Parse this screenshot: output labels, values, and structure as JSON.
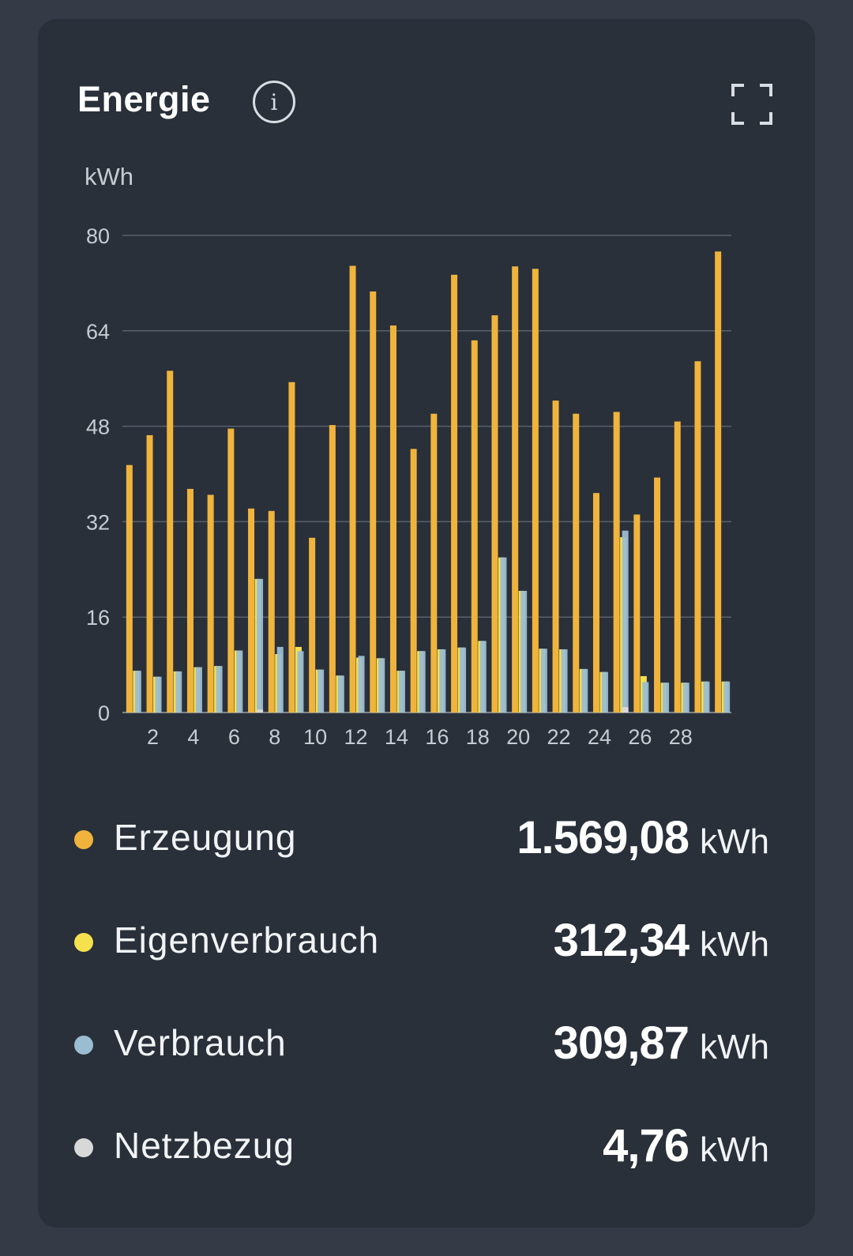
{
  "card": {
    "title": "Energie",
    "info_icon": "info-icon",
    "fullscreen_icon": "fullscreen-icon"
  },
  "chart_data": {
    "type": "bar",
    "ylabel": "kWh",
    "ylim": [
      0,
      80
    ],
    "yticks": [
      0,
      16,
      32,
      48,
      64,
      80
    ],
    "x": [
      1,
      2,
      3,
      4,
      5,
      6,
      7,
      8,
      9,
      10,
      11,
      12,
      13,
      14,
      15,
      16,
      17,
      18,
      19,
      20,
      21,
      22,
      23,
      24,
      25,
      26,
      27,
      28,
      29,
      30
    ],
    "xtick_labels": [
      "2",
      "4",
      "6",
      "8",
      "10",
      "12",
      "14",
      "16",
      "18",
      "20",
      "22",
      "24",
      "26",
      "28"
    ],
    "grid": true,
    "series": [
      {
        "name": "Erzeugung",
        "color": "#f0b43c",
        "values": [
          41.5,
          46.5,
          57.3,
          37.5,
          36.5,
          47.6,
          34.2,
          33.8,
          55.4,
          29.3,
          48.2,
          74.9,
          70.6,
          64.9,
          44.2,
          50.1,
          73.4,
          62.4,
          66.6,
          74.8,
          74.4,
          52.3,
          50.1,
          36.8,
          50.4,
          33.2,
          39.4,
          48.8,
          58.9,
          77.3
        ]
      },
      {
        "name": "Eigenverbrauch",
        "color": "#f5e04e",
        "values": [
          7.0,
          6.0,
          6.9,
          7.6,
          7.8,
          10.4,
          22.4,
          9.8,
          11.0,
          7.2,
          6.2,
          9.2,
          9.1,
          7.0,
          10.3,
          10.6,
          10.9,
          12.0,
          26.0,
          20.4,
          10.7,
          10.6,
          7.3,
          6.8,
          29.4,
          6.1,
          5.0,
          5.0,
          5.2,
          5.2
        ]
      },
      {
        "name": "Verbrauch",
        "color": "#9bbdd2",
        "values": [
          7.0,
          6.0,
          6.9,
          7.6,
          7.8,
          10.4,
          22.4,
          11.0,
          10.3,
          7.2,
          6.2,
          9.5,
          9.1,
          7.0,
          10.3,
          10.6,
          10.9,
          12.0,
          26.0,
          20.4,
          10.7,
          10.6,
          7.3,
          6.8,
          30.5,
          5.1,
          5.0,
          5.0,
          5.2,
          5.2
        ]
      },
      {
        "name": "Netzbezug",
        "color": "#d8d8d8",
        "values": [
          0,
          0,
          0,
          0,
          0,
          0,
          0.5,
          0,
          0,
          0,
          0,
          0,
          0,
          0,
          0,
          0,
          0,
          0,
          0,
          0,
          0,
          0,
          0,
          0,
          0.9,
          0,
          0,
          0,
          0,
          0
        ]
      }
    ]
  },
  "legend": [
    {
      "label": "Erzeugung",
      "value": "1.569,08",
      "unit": "kWh",
      "color": "#f0b43c"
    },
    {
      "label": "Eigenverbrauch",
      "value": "312,34",
      "unit": "kWh",
      "color": "#f5e04e"
    },
    {
      "label": "Verbrauch",
      "value": "309,87",
      "unit": "kWh",
      "color": "#9bbdd2"
    },
    {
      "label": "Netzbezug",
      "value": "4,76",
      "unit": "kWh",
      "color": "#d8d8d8"
    }
  ]
}
